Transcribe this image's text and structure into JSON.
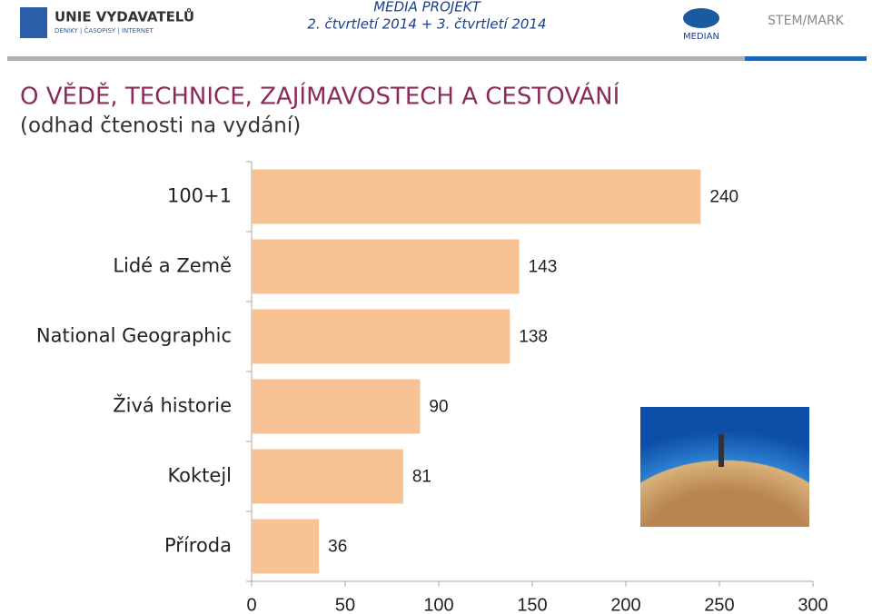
{
  "header": {
    "publisher": "UNIE VYDAVATELŮ",
    "publisher_sub": "DENÍKY | ČASOPISY | INTERNET",
    "project": "MEDIA PROJEKT",
    "period": "2. čtvrtletí 2014 + 3. čtvrtletí 2014",
    "partner1": "MEDIAN",
    "partner2": "STEM/MARK"
  },
  "chart_data": {
    "type": "barh",
    "title": "O VĚDĚ, TECHNICE, ZAJÍMAVOSTECH A CESTOVÁNÍ",
    "subtitle": "(odhad čtenosti na vydání)",
    "categories": [
      "100+1",
      "Lidé a Země",
      "National Geographic",
      "Živá historie",
      "Koktejl",
      "Příroda"
    ],
    "values": [
      240,
      143,
      138,
      90,
      81,
      36
    ],
    "color": "#f8c295",
    "xlim": [
      0,
      300
    ],
    "xticks": [
      0,
      50,
      100,
      150,
      200,
      250,
      300
    ]
  }
}
